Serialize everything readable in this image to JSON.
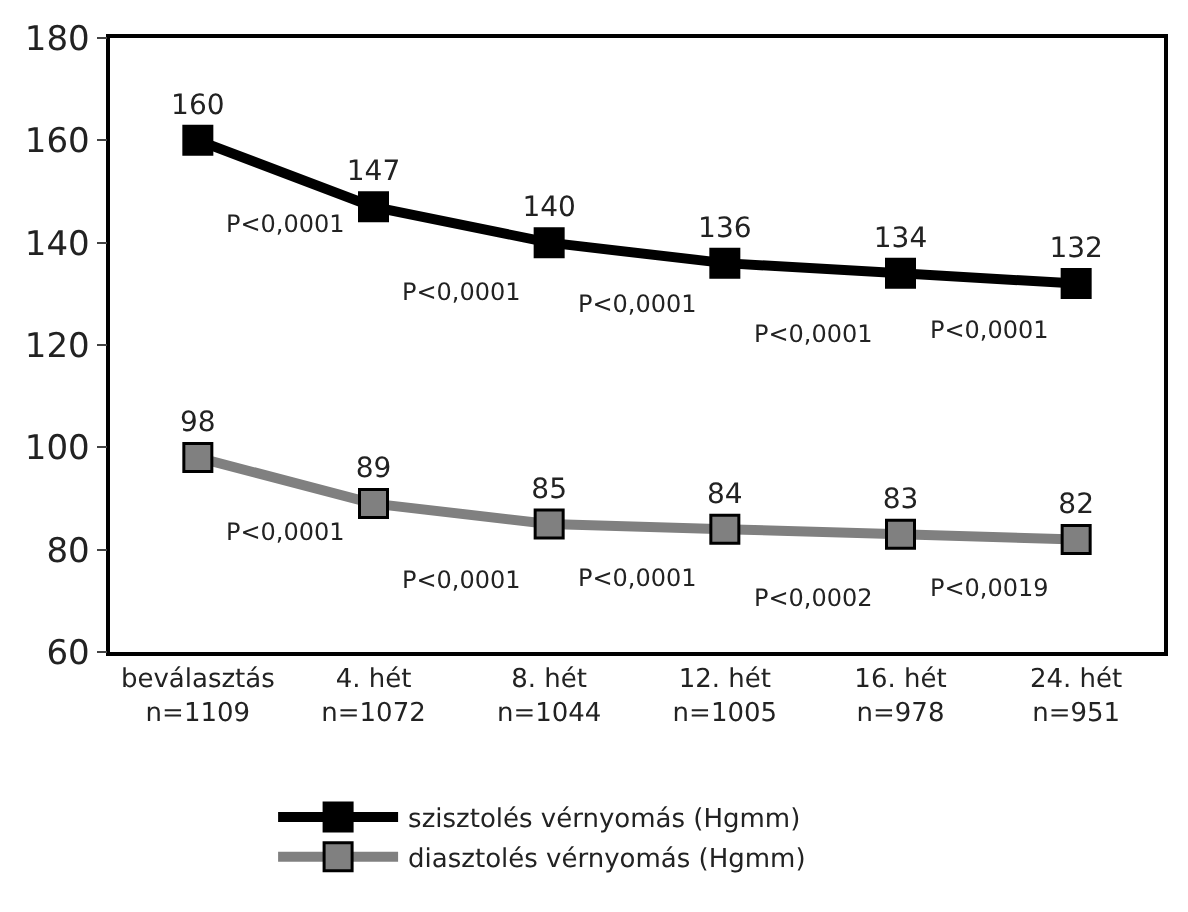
{
  "chart_data": {
    "type": "line",
    "categories": [
      "beválasztás\nn=1109",
      "4. hét\nn=1072",
      "8. hét\nn=1044",
      "12. hét\nn=1005",
      "16. hét\nn=978",
      "24. hét\nn=951"
    ],
    "series": [
      {
        "name": "szisztolés vérnyomás (Hgmm)",
        "color": "#000000",
        "values": [
          160,
          147,
          140,
          136,
          134,
          132
        ]
      },
      {
        "name": "diasztolés vérnyomás (Hgmm)",
        "color": "#808080",
        "values": [
          98,
          89,
          85,
          84,
          83,
          82
        ]
      }
    ],
    "ylim": [
      60,
      180
    ],
    "yticks": [
      60,
      80,
      100,
      120,
      140,
      160,
      180
    ],
    "data_labels": true,
    "marker": "square",
    "line_style": "solid",
    "legend": "bottom",
    "annotations": [
      "P<0,0001",
      "P<0,0001",
      "P<0,0001",
      "P<0,0001",
      "P<0,0001",
      "P<0,0001",
      "P<0,0001",
      "P<0,0001",
      "P<0,0002",
      "P<0,0019"
    ]
  }
}
